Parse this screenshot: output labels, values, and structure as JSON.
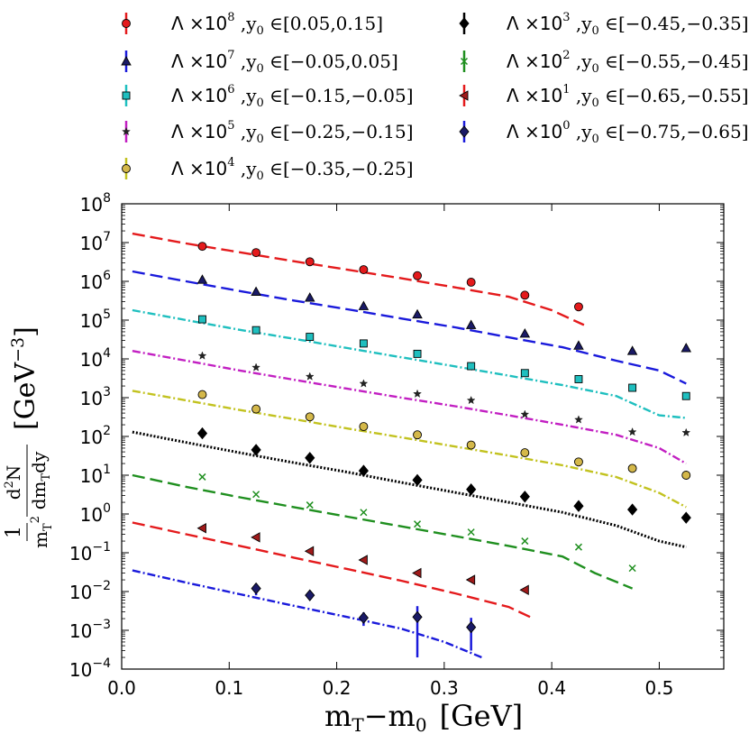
{
  "chart_data": {
    "type": "scatter",
    "title": "",
    "xlabel": "m_T −m_0  [GeV]",
    "xlabel_parts": {
      "m1": "m",
      "s1": "T",
      "minus": "−m",
      "s2": "0",
      "unit": "[GeV]"
    },
    "ylabel": "(1/m_T^2) d^2N/dm_T dy  [GeV^-3]",
    "ylabel_parts": {
      "one": "1",
      "num": "d",
      "num_sup": "2",
      "num_tail": "N",
      "den_m": "m",
      "den_sup": "2",
      "den_sub": "T",
      "den_tail": "dm",
      "den_tail_sub": "T",
      "den_tail_end": "dy",
      "unit": "[GeV",
      "unit_sup": "−3",
      "unit_close": "]"
    },
    "xlim": [
      0.0,
      0.56
    ],
    "ylim": [
      0.0001,
      100000000
    ],
    "yscale": "log",
    "x_ticks": [
      "0.0",
      "0.1",
      "0.2",
      "0.3",
      "0.4",
      "0.5"
    ],
    "x_tick_values": [
      0.0,
      0.1,
      0.2,
      0.3,
      0.4,
      0.5
    ],
    "y_ticks": [
      {
        "base": "10",
        "exp": "−4",
        "value": 0.0001
      },
      {
        "base": "10",
        "exp": "−3",
        "value": 0.001
      },
      {
        "base": "10",
        "exp": "−2",
        "value": 0.01
      },
      {
        "base": "10",
        "exp": "−1",
        "value": 0.1
      },
      {
        "base": "10",
        "exp": "0",
        "value": 1
      },
      {
        "base": "10",
        "exp": "1",
        "value": 10
      },
      {
        "base": "10",
        "exp": "2",
        "value": 100
      },
      {
        "base": "10",
        "exp": "3",
        "value": 1000
      },
      {
        "base": "10",
        "exp": "4",
        "value": 10000
      },
      {
        "base": "10",
        "exp": "5",
        "value": 100000
      },
      {
        "base": "10",
        "exp": "6",
        "value": 1000000
      },
      {
        "base": "10",
        "exp": "7",
        "value": 10000000
      },
      {
        "base": "10",
        "exp": "8",
        "value": 100000000
      }
    ],
    "legend_position": "above plot, two columns",
    "series": [
      {
        "name": "Λ ×10^8 ,y0 ∈[0.05,0.15]",
        "lam": "Λ ×10",
        "exp": "8",
        "range": " ,y",
        "sub": "0",
        "interval": " ∈[0.05,0.15]",
        "color": "#e41a1c",
        "marker": "circle",
        "marker_fill": "#e41a1c",
        "line_style": "dashed",
        "x": [
          0.075,
          0.125,
          0.175,
          0.225,
          0.275,
          0.325,
          0.375,
          0.425
        ],
        "y": [
          8000000,
          5500000,
          3200000,
          2000000,
          1400000,
          950000,
          440000,
          220000
        ],
        "err": [
          0,
          0,
          0,
          0,
          0,
          0,
          0,
          0
        ],
        "model_x": [
          0.01,
          0.06,
          0.11,
          0.16,
          0.21,
          0.26,
          0.31,
          0.36,
          0.4,
          0.43
        ],
        "model_y": [
          17000000,
          9500000,
          5600000,
          3300000,
          2000000,
          1200000,
          700000,
          400000,
          180000,
          75000
        ]
      },
      {
        "name": "Λ ×10^7 ,y0 ∈[−0.05,0.05]",
        "lam": "Λ ×10",
        "exp": "7",
        "range": " ,y",
        "sub": "0",
        "interval": " ∈[−0.05,0.05]",
        "color": "#1a1adb",
        "marker": "triangle",
        "marker_fill": "#1a1a66",
        "line_style": "dashed",
        "x": [
          0.075,
          0.125,
          0.175,
          0.225,
          0.275,
          0.325,
          0.375,
          0.425,
          0.475,
          0.525
        ],
        "y": [
          1100000,
          540000,
          380000,
          230000,
          140000,
          75000,
          45000,
          22000,
          16000,
          19000
        ],
        "err": [
          0,
          0,
          0,
          0,
          0,
          0,
          0,
          0,
          0,
          0
        ],
        "model_x": [
          0.01,
          0.06,
          0.11,
          0.16,
          0.21,
          0.26,
          0.31,
          0.36,
          0.41,
          0.46,
          0.5,
          0.525
        ],
        "model_y": [
          1800000,
          1000000,
          560000,
          320000,
          190000,
          110000,
          65000,
          36000,
          20000,
          9000,
          5000,
          2300
        ]
      },
      {
        "name": "Λ ×10^6 ,y0 ∈[−0.15,−0.05]",
        "lam": "Λ ×10",
        "exp": "6",
        "range": " ,y",
        "sub": "0",
        "interval": " ∈[−0.15,−0.05]",
        "color": "#1fbfbf",
        "marker": "square",
        "marker_fill": "#1fbfbf",
        "line_style": "dashdot",
        "x": [
          0.075,
          0.125,
          0.175,
          0.225,
          0.275,
          0.325,
          0.375,
          0.425,
          0.475,
          0.525
        ],
        "y": [
          105000,
          55000,
          37000,
          25000,
          13500,
          6500,
          4300,
          3000,
          1800,
          1100
        ],
        "err": [
          0,
          0,
          0,
          0,
          0,
          0,
          0,
          0,
          0,
          0
        ],
        "model_x": [
          0.01,
          0.06,
          0.11,
          0.16,
          0.21,
          0.26,
          0.31,
          0.36,
          0.41,
          0.46,
          0.5,
          0.525
        ],
        "model_y": [
          180000,
          100000,
          56000,
          33000,
          19000,
          11000,
          6400,
          3700,
          2100,
          1100,
          350,
          300
        ]
      },
      {
        "name": "Λ ×10^5 ,y0 ∈[−0.25,−0.15]",
        "lam": "Λ ×10",
        "exp": "5",
        "range": " ,y",
        "sub": "0",
        "interval": " ∈[−0.25,−0.15]",
        "color": "#c21fc2",
        "marker": "star",
        "marker_fill": "#222222",
        "line_style": "dashdot",
        "x": [
          0.075,
          0.125,
          0.175,
          0.225,
          0.275,
          0.325,
          0.375,
          0.425,
          0.475,
          0.525
        ],
        "y": [
          12000,
          6000,
          3500,
          2300,
          1250,
          850,
          370,
          270,
          130,
          125
        ],
        "err": [
          0,
          0,
          0,
          0,
          0,
          0,
          0,
          0,
          0,
          0
        ],
        "model_x": [
          0.01,
          0.06,
          0.11,
          0.16,
          0.21,
          0.26,
          0.31,
          0.36,
          0.41,
          0.46,
          0.5,
          0.525
        ],
        "model_y": [
          16000,
          9000,
          5000,
          2900,
          1700,
          1000,
          600,
          350,
          200,
          110,
          50,
          20
        ]
      },
      {
        "name": "Λ ×10^4 ,y0 ∈[−0.35,−0.25]",
        "lam": "Λ ×10",
        "exp": "4",
        "range": " ,y",
        "sub": "0",
        "interval": " ∈[−0.35,−0.25]",
        "color": "#c2c21f",
        "marker": "circle",
        "marker_fill": "#d4b84a",
        "line_style": "dashdot",
        "x": [
          0.075,
          0.125,
          0.175,
          0.225,
          0.275,
          0.325,
          0.375,
          0.425,
          0.475,
          0.525
        ],
        "y": [
          1200,
          510,
          320,
          180,
          110,
          60,
          38,
          22,
          15,
          10
        ],
        "err": [
          0,
          0,
          0,
          0,
          0,
          0,
          0,
          0,
          0,
          0
        ],
        "model_x": [
          0.01,
          0.06,
          0.11,
          0.16,
          0.21,
          0.26,
          0.31,
          0.36,
          0.41,
          0.46,
          0.5,
          0.525
        ],
        "model_y": [
          1500,
          850,
          480,
          280,
          160,
          95,
          55,
          32,
          18,
          9,
          3.5,
          1.5
        ]
      },
      {
        "name": "Λ ×10^3 ,y0 ∈[−0.45,−0.35]",
        "lam": "Λ ×10",
        "exp": "3",
        "range": " ,y",
        "sub": "0",
        "interval": " ∈[−0.45,−0.35]",
        "color": "#000000",
        "marker": "diamond",
        "marker_fill": "#000000",
        "line_style": "dotted",
        "x": [
          0.075,
          0.125,
          0.175,
          0.225,
          0.275,
          0.325,
          0.375,
          0.425,
          0.475,
          0.525
        ],
        "y": [
          120,
          45,
          28,
          13,
          7.5,
          4.3,
          2.8,
          1.6,
          1.3,
          0.8
        ],
        "err": [
          0,
          0,
          0,
          0,
          0,
          0,
          0,
          0,
          0,
          0
        ],
        "model_x": [
          0.01,
          0.06,
          0.11,
          0.16,
          0.21,
          0.26,
          0.31,
          0.36,
          0.41,
          0.46,
          0.5,
          0.525
        ],
        "model_y": [
          130,
          70,
          38,
          21,
          12,
          6.5,
          3.6,
          2.0,
          1.1,
          0.5,
          0.2,
          0.14
        ]
      },
      {
        "name": "Λ ×10^2 ,y0 ∈[−0.55,−0.45]",
        "lam": "Λ ×10",
        "exp": "2",
        "range": " ,y",
        "sub": "0",
        "interval": " ∈[−0.55,−0.45]",
        "color": "#1f8f1f",
        "marker": "cross",
        "marker_fill": "#1f8f1f",
        "line_style": "dashed",
        "x": [
          0.075,
          0.125,
          0.175,
          0.225,
          0.275,
          0.325,
          0.375,
          0.425,
          0.475
        ],
        "y": [
          9,
          3.2,
          1.7,
          1.1,
          0.55,
          0.34,
          0.2,
          0.14,
          0.04
        ],
        "err": [
          0,
          0,
          0,
          0,
          0,
          0,
          0,
          0,
          0
        ],
        "model_x": [
          0.01,
          0.06,
          0.11,
          0.16,
          0.21,
          0.26,
          0.31,
          0.36,
          0.41,
          0.44,
          0.475
        ],
        "model_y": [
          10,
          5,
          2.7,
          1.5,
          0.85,
          0.48,
          0.27,
          0.15,
          0.08,
          0.03,
          0.012
        ]
      },
      {
        "name": "Λ ×10^1 ,y0 ∈[−0.65,−0.55]",
        "lam": "Λ ×10",
        "exp": "1",
        "range": " ,y",
        "sub": "0",
        "interval": " ∈[−0.65,−0.55]",
        "color": "#e41a1c",
        "marker": "triangle-left",
        "marker_fill": "#a01a1a",
        "line_style": "dashed",
        "x": [
          0.075,
          0.125,
          0.175,
          0.225,
          0.275,
          0.325,
          0.375
        ],
        "y": [
          0.43,
          0.25,
          0.11,
          0.065,
          0.03,
          0.02,
          0.011
        ],
        "err": [
          0,
          0,
          0,
          0,
          0,
          0,
          0
        ],
        "model_x": [
          0.01,
          0.06,
          0.11,
          0.16,
          0.21,
          0.26,
          0.31,
          0.36,
          0.38
        ],
        "model_y": [
          0.6,
          0.3,
          0.15,
          0.075,
          0.038,
          0.019,
          0.009,
          0.004,
          0.0022
        ]
      },
      {
        "name": "Λ ×10^0 ,y0 ∈[−0.75,−0.65]",
        "lam": "Λ ×10",
        "exp": "0",
        "range": " ,y",
        "sub": "0",
        "interval": " ∈[−0.75,−0.65]",
        "color": "#1a1adb",
        "marker": "diamond",
        "marker_fill": "#1a1a66",
        "line_style": "dashdot",
        "x": [
          0.125,
          0.175,
          0.225,
          0.275,
          0.325
        ],
        "y": [
          0.012,
          0.008,
          0.0021,
          0.0022,
          0.0012
        ],
        "err": [
          0.004,
          0.002,
          0.0008,
          0.002,
          0.0009
        ],
        "model_x": [
          0.01,
          0.06,
          0.11,
          0.16,
          0.21,
          0.26,
          0.3,
          0.335
        ],
        "model_y": [
          0.035,
          0.017,
          0.0085,
          0.0043,
          0.0022,
          0.0011,
          0.0005,
          0.0002
        ]
      }
    ]
  }
}
